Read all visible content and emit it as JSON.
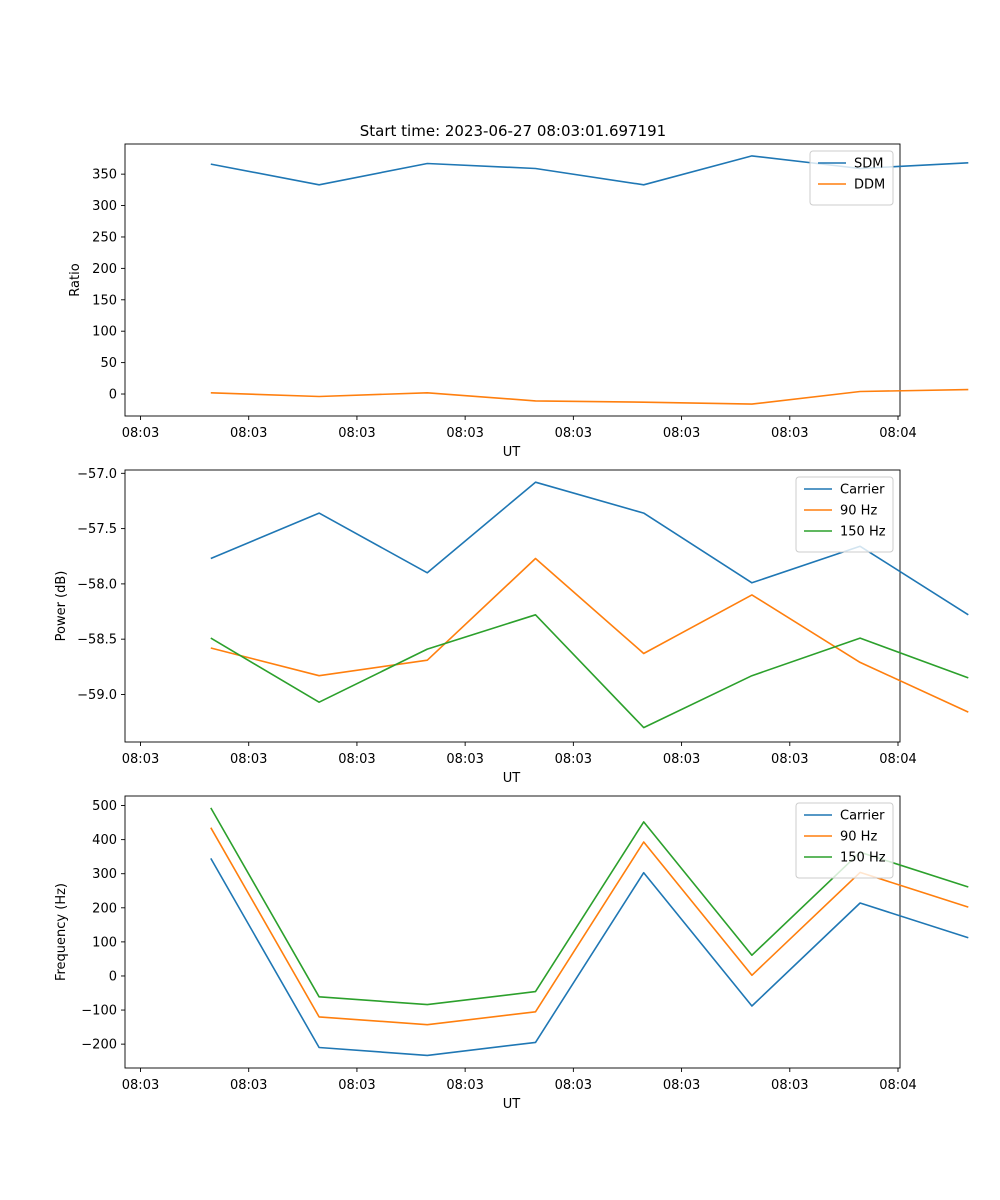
{
  "figure": {
    "title": "Start time: 2023-06-27 08:03:01.697191"
  },
  "chart_data": [
    {
      "type": "line",
      "xlabel": "UT",
      "ylabel": "Ratio",
      "x_tick_labels": [
        "08:03",
        "08:03",
        "08:03",
        "08:03",
        "08:03",
        "08:03",
        "08:03",
        "08:04"
      ],
      "x": [
        1,
        2,
        3,
        4,
        5,
        6,
        7,
        8
      ],
      "xlim": [
        0.15,
        9.4
      ],
      "ylim": [
        -35,
        398
      ],
      "yticks": [
        0,
        50,
        100,
        150,
        200,
        250,
        300,
        350
      ],
      "y_tick_labels": [
        "0",
        "50",
        "100",
        "150",
        "200",
        "250",
        "300",
        "350"
      ],
      "legend": "top-right",
      "series": [
        {
          "name": "SDM",
          "color": "#1f77b4",
          "values": [
            366,
            333,
            367,
            359,
            333,
            379,
            359,
            368
          ]
        },
        {
          "name": "DDM",
          "color": "#ff7f0e",
          "values": [
            2,
            -4,
            2,
            -11,
            -13,
            -16,
            4,
            7
          ]
        }
      ]
    },
    {
      "type": "line",
      "xlabel": "UT",
      "ylabel": "Power (dB)",
      "x_tick_labels": [
        "08:03",
        "08:03",
        "08:03",
        "08:03",
        "08:03",
        "08:03",
        "08:03",
        "08:04"
      ],
      "x": [
        1,
        2,
        3,
        4,
        5,
        6,
        7,
        8
      ],
      "xlim": [
        0.15,
        9.4
      ],
      "ylim": [
        -59.43,
        -56.97
      ],
      "yticks": [
        -59.0,
        -58.5,
        -58.0,
        -57.5,
        -57.0
      ],
      "y_tick_labels": [
        "−59.0",
        "−58.5",
        "−58.0",
        "−57.5",
        "−57.0"
      ],
      "legend": "top-right",
      "series": [
        {
          "name": "Carrier",
          "color": "#1f77b4",
          "values": [
            -57.77,
            -57.36,
            -57.9,
            -57.08,
            -57.36,
            -57.99,
            -57.66,
            -58.28
          ]
        },
        {
          "name": "90 Hz",
          "color": "#ff7f0e",
          "values": [
            -58.58,
            -58.83,
            -58.69,
            -57.77,
            -58.63,
            -58.1,
            -58.71,
            -59.16
          ]
        },
        {
          "name": "150 Hz",
          "color": "#2ca02c",
          "values": [
            -58.49,
            -59.07,
            -58.59,
            -58.28,
            -59.3,
            -58.83,
            -58.49,
            -58.85
          ]
        }
      ]
    },
    {
      "type": "line",
      "xlabel": "UT",
      "ylabel": "Frequency (Hz)",
      "x_tick_labels": [
        "08:03",
        "08:03",
        "08:03",
        "08:03",
        "08:03",
        "08:03",
        "08:03",
        "08:04"
      ],
      "x": [
        1,
        2,
        3,
        4,
        5,
        6,
        7,
        8
      ],
      "xlim": [
        0.15,
        9.4
      ],
      "ylim": [
        -270,
        528
      ],
      "yticks": [
        -200,
        -100,
        0,
        100,
        200,
        300,
        400,
        500
      ],
      "y_tick_labels": [
        "−200",
        "−100",
        "0",
        "100",
        "200",
        "300",
        "400",
        "500"
      ],
      "legend": "top-right",
      "series": [
        {
          "name": "Carrier",
          "color": "#1f77b4",
          "values": [
            345,
            -210,
            -233,
            -195,
            303,
            -88,
            214,
            112
          ]
        },
        {
          "name": "90 Hz",
          "color": "#ff7f0e",
          "values": [
            435,
            -120,
            -143,
            -105,
            393,
            2,
            304,
            202
          ]
        },
        {
          "name": "150 Hz",
          "color": "#2ca02c",
          "values": [
            493,
            -61,
            -84,
            -46,
            452,
            61,
            363,
            261
          ]
        }
      ]
    }
  ]
}
